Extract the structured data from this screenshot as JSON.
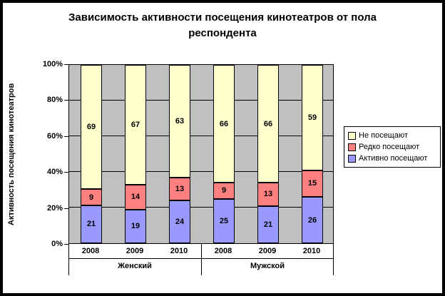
{
  "chart_data": {
    "type": "bar",
    "stacked": true,
    "percent": true,
    "title": "Зависимость активности посещения кинотеатров от пола респондента",
    "xlabel": "",
    "ylabel": "Активность посещения кинотеатров",
    "ylim": [
      0,
      100
    ],
    "yticks": [
      "0%",
      "20%",
      "40%",
      "60%",
      "80%",
      "100%"
    ],
    "grid": "horizontal",
    "plot_bg": "#C0C0C0",
    "legend_position": "right",
    "groups": [
      {
        "label": "Женский",
        "years": [
          "2008",
          "2009",
          "2010"
        ]
      },
      {
        "label": "Мужской",
        "years": [
          "2008",
          "2009",
          "2010"
        ]
      }
    ],
    "categories": [
      "2008",
      "2009",
      "2010",
      "2008",
      "2009",
      "2010"
    ],
    "series": [
      {
        "name": "Активно посещают",
        "color": "#9999FF",
        "values": [
          21,
          19,
          24,
          25,
          21,
          26
        ]
      },
      {
        "name": "Редко посещают",
        "color": "#FF8080",
        "values": [
          9,
          14,
          13,
          9,
          13,
          15
        ]
      },
      {
        "name": "Не посещают",
        "color": "#FFFFCC",
        "values": [
          69,
          67,
          63,
          66,
          66,
          59
        ]
      }
    ],
    "legend_order": [
      "Не посещают",
      "Редко посещают",
      "Активно посещают"
    ]
  }
}
